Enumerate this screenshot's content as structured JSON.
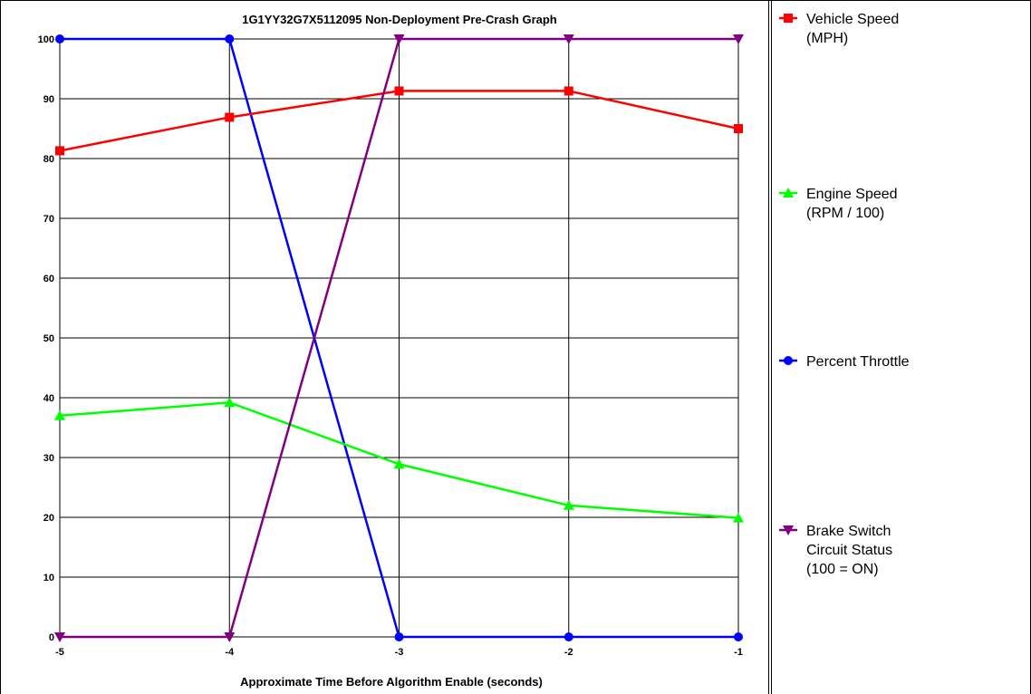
{
  "chart_data": {
    "type": "line",
    "title": "1G1YY32G7X5112095 Non-Deployment Pre-Crash Graph",
    "xlabel": "Approximate Time Before Algorithm Enable (seconds)",
    "ylabel": "",
    "x": [
      -5,
      -4,
      -3,
      -2,
      -1
    ],
    "x_tick_labels": [
      "-5",
      "-4",
      "-3",
      "-2",
      "-1"
    ],
    "xlim": [
      -5,
      -1
    ],
    "ylim": [
      0,
      100
    ],
    "y_ticks": [
      0,
      10,
      20,
      30,
      40,
      50,
      60,
      70,
      80,
      90,
      100
    ],
    "y_tick_labels": [
      "0",
      "10",
      "20",
      "30",
      "40",
      "50",
      "60",
      "70",
      "80",
      "90",
      "100"
    ],
    "grid": true,
    "legend_position": "right",
    "series": [
      {
        "name_lines": [
          "Vehicle Speed",
          "(MPH)"
        ],
        "color": "#ff0000",
        "marker": "square",
        "values": [
          81.3,
          86.9,
          91.3,
          91.3,
          85
        ]
      },
      {
        "name_lines": [
          "Engine Speed",
          "(RPM / 100)"
        ],
        "color": "#00ff00",
        "marker": "triangle-up",
        "values": [
          37,
          39.2,
          28.9,
          22,
          19.9
        ]
      },
      {
        "name_lines": [
          "Percent Throttle"
        ],
        "color": "#0000ff",
        "marker": "circle",
        "values": [
          100,
          100,
          0,
          0,
          0
        ]
      },
      {
        "name_lines": [
          "Brake Switch",
          "Circuit Status",
          "(100 = ON)"
        ],
        "color": "#800080",
        "marker": "triangle-down",
        "values": [
          0,
          0,
          100,
          100,
          100
        ]
      }
    ]
  }
}
